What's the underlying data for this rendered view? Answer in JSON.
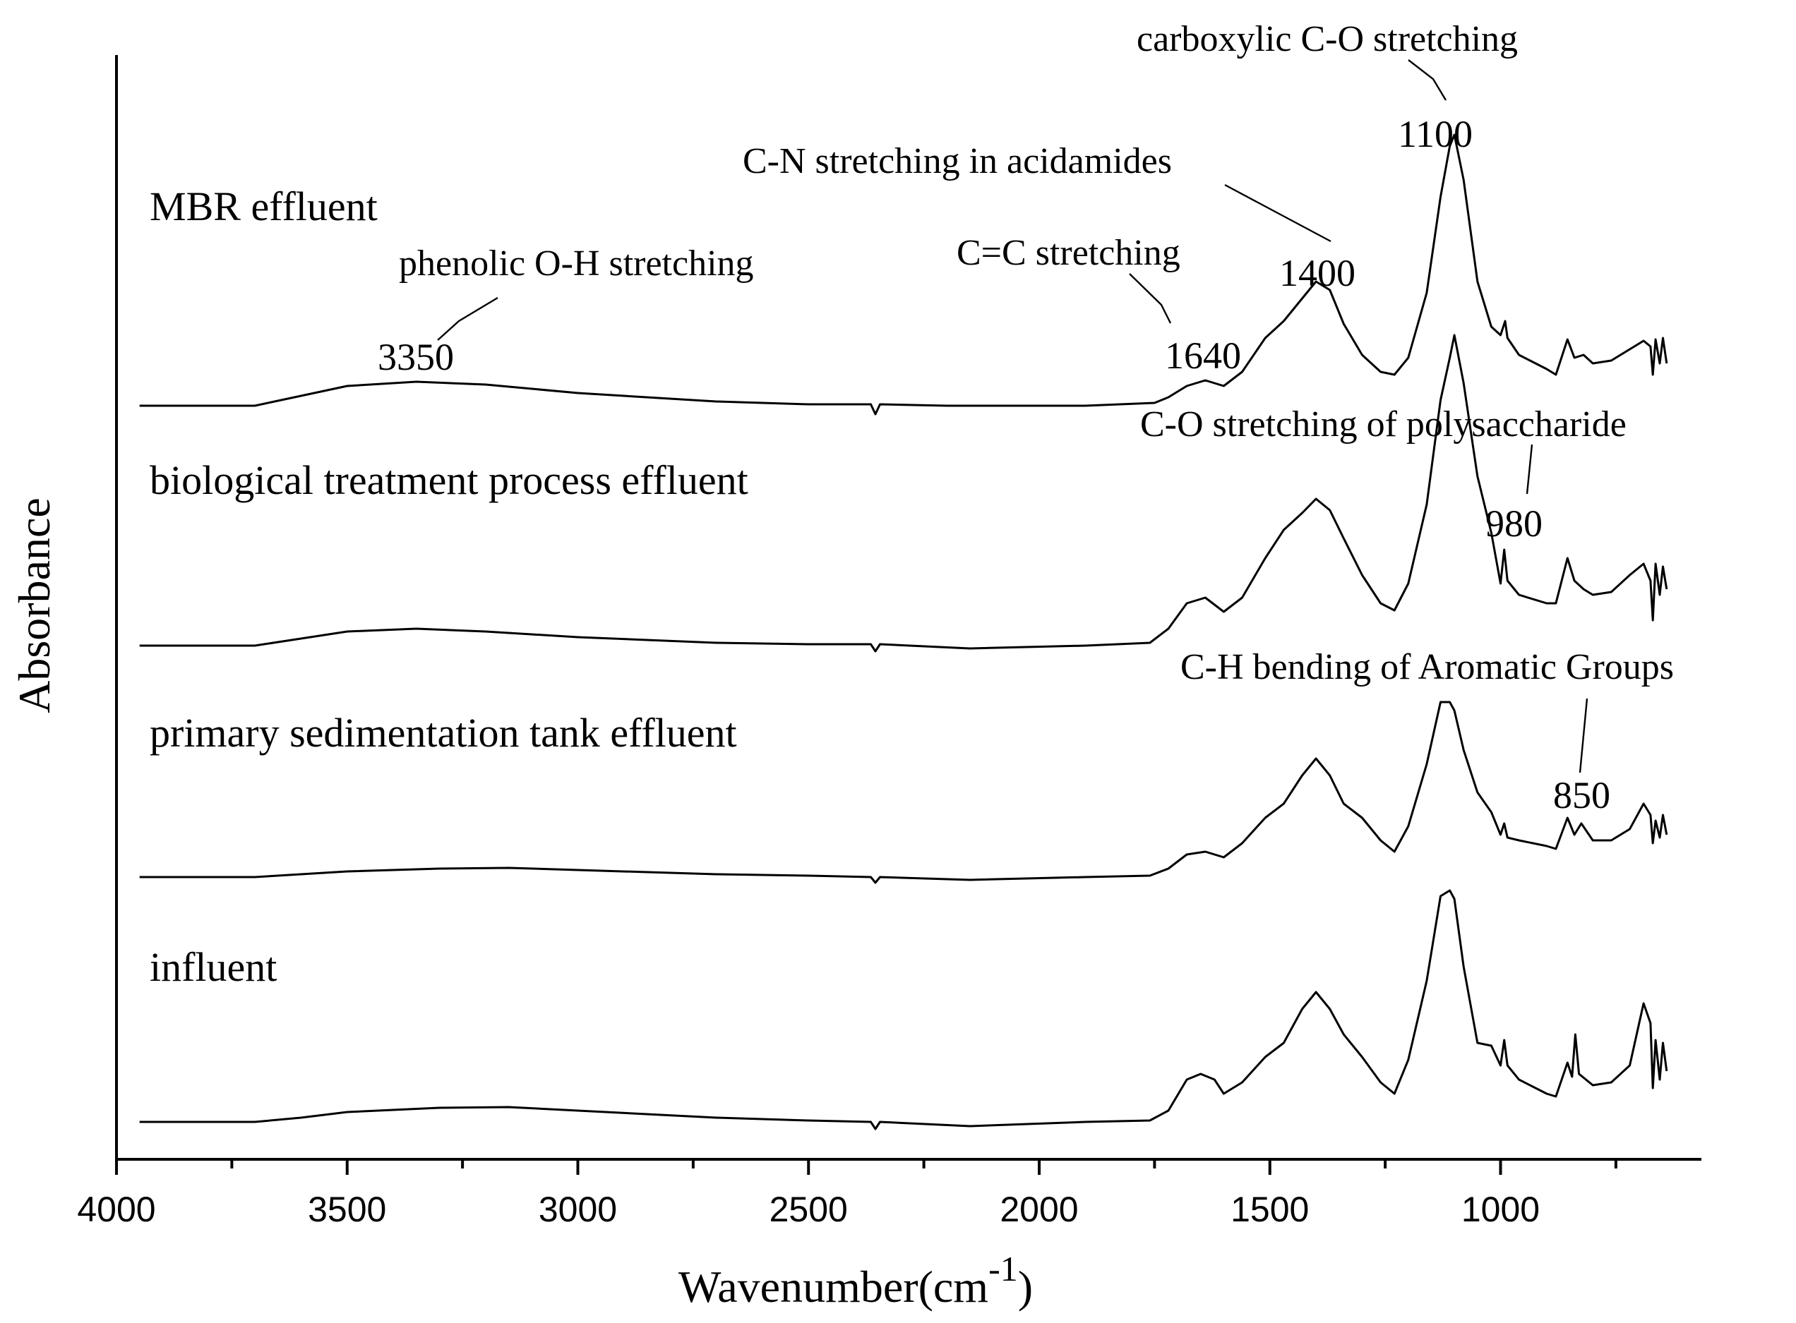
{
  "chart_data": {
    "type": "line",
    "title": "",
    "xlabel": "Wavenumber(cm",
    "xlabel_superscript": "-1",
    "xlabel_suffix": ")",
    "ylabel": "Absorbance",
    "xlim": [
      4000,
      600
    ],
    "x_reversed": true,
    "grid": false,
    "y_ticks_shown": false,
    "ticks": [
      4000,
      3500,
      3000,
      2500,
      2000,
      1500,
      1000
    ],
    "tick_labels": [
      "4000",
      "3500",
      "3000",
      "2500",
      "2000",
      "1500",
      "1000"
    ],
    "series": [
      {
        "name": "MBR effluent",
        "color": "#000000",
        "points": [
          [
            3950,
            0.0
          ],
          [
            3700,
            0.0
          ],
          [
            3600,
            0.07
          ],
          [
            3500,
            0.14
          ],
          [
            3350,
            0.17
          ],
          [
            3200,
            0.15
          ],
          [
            3000,
            0.09
          ],
          [
            2700,
            0.03
          ],
          [
            2500,
            0.01
          ],
          [
            2365,
            0.01
          ],
          [
            2355,
            -0.06
          ],
          [
            2345,
            0.01
          ],
          [
            2200,
            0.0
          ],
          [
            1900,
            0.0
          ],
          [
            1750,
            0.02
          ],
          [
            1720,
            0.06
          ],
          [
            1680,
            0.14
          ],
          [
            1640,
            0.18
          ],
          [
            1600,
            0.14
          ],
          [
            1560,
            0.24
          ],
          [
            1510,
            0.48
          ],
          [
            1470,
            0.6
          ],
          [
            1430,
            0.76
          ],
          [
            1400,
            0.88
          ],
          [
            1370,
            0.82
          ],
          [
            1340,
            0.58
          ],
          [
            1300,
            0.36
          ],
          [
            1260,
            0.24
          ],
          [
            1230,
            0.22
          ],
          [
            1200,
            0.34
          ],
          [
            1160,
            0.8
          ],
          [
            1130,
            1.48
          ],
          [
            1110,
            1.84
          ],
          [
            1100,
            1.92
          ],
          [
            1080,
            1.6
          ],
          [
            1050,
            0.88
          ],
          [
            1020,
            0.56
          ],
          [
            1000,
            0.5
          ],
          [
            990,
            0.6
          ],
          [
            985,
            0.48
          ],
          [
            960,
            0.36
          ],
          [
            900,
            0.26
          ],
          [
            880,
            0.22
          ],
          [
            855,
            0.47
          ],
          [
            840,
            0.34
          ],
          [
            820,
            0.36
          ],
          [
            800,
            0.3
          ],
          [
            760,
            0.32
          ],
          [
            720,
            0.4
          ],
          [
            690,
            0.46
          ],
          [
            675,
            0.42
          ],
          [
            670,
            0.22
          ],
          [
            664,
            0.47
          ],
          [
            655,
            0.3
          ],
          [
            648,
            0.48
          ],
          [
            640,
            0.3
          ]
        ]
      },
      {
        "name": "biological treatment process effluent",
        "color": "#000000",
        "points": [
          [
            3950,
            0.0
          ],
          [
            3700,
            0.0
          ],
          [
            3600,
            0.05
          ],
          [
            3500,
            0.1
          ],
          [
            3350,
            0.12
          ],
          [
            3200,
            0.1
          ],
          [
            3000,
            0.06
          ],
          [
            2700,
            0.02
          ],
          [
            2500,
            0.01
          ],
          [
            2365,
            0.01
          ],
          [
            2355,
            -0.04
          ],
          [
            2345,
            0.01
          ],
          [
            2150,
            -0.02
          ],
          [
            1900,
            0.0
          ],
          [
            1760,
            0.02
          ],
          [
            1720,
            0.12
          ],
          [
            1680,
            0.3
          ],
          [
            1640,
            0.34
          ],
          [
            1600,
            0.24
          ],
          [
            1560,
            0.34
          ],
          [
            1510,
            0.62
          ],
          [
            1470,
            0.82
          ],
          [
            1430,
            0.94
          ],
          [
            1400,
            1.04
          ],
          [
            1370,
            0.96
          ],
          [
            1340,
            0.76
          ],
          [
            1300,
            0.5
          ],
          [
            1260,
            0.3
          ],
          [
            1230,
            0.25
          ],
          [
            1200,
            0.44
          ],
          [
            1160,
            1.0
          ],
          [
            1130,
            1.74
          ],
          [
            1110,
            2.04
          ],
          [
            1100,
            2.2
          ],
          [
            1080,
            1.86
          ],
          [
            1050,
            1.2
          ],
          [
            1020,
            0.8
          ],
          [
            1000,
            0.44
          ],
          [
            992,
            0.68
          ],
          [
            985,
            0.46
          ],
          [
            960,
            0.36
          ],
          [
            900,
            0.3
          ],
          [
            880,
            0.3
          ],
          [
            855,
            0.62
          ],
          [
            840,
            0.46
          ],
          [
            820,
            0.4
          ],
          [
            800,
            0.36
          ],
          [
            760,
            0.38
          ],
          [
            720,
            0.5
          ],
          [
            690,
            0.58
          ],
          [
            675,
            0.46
          ],
          [
            670,
            0.18
          ],
          [
            664,
            0.58
          ],
          [
            655,
            0.36
          ],
          [
            648,
            0.56
          ],
          [
            640,
            0.4
          ]
        ]
      },
      {
        "name": "primary sedimentation tank effluent",
        "color": "#000000",
        "points": [
          [
            3950,
            0.0
          ],
          [
            3700,
            0.0
          ],
          [
            3600,
            0.02
          ],
          [
            3500,
            0.04
          ],
          [
            3300,
            0.06
          ],
          [
            3150,
            0.065
          ],
          [
            3000,
            0.05
          ],
          [
            2700,
            0.02
          ],
          [
            2500,
            0.01
          ],
          [
            2365,
            0.0
          ],
          [
            2355,
            -0.04
          ],
          [
            2345,
            0.0
          ],
          [
            2150,
            -0.02
          ],
          [
            1900,
            0.0
          ],
          [
            1760,
            0.01
          ],
          [
            1720,
            0.06
          ],
          [
            1680,
            0.16
          ],
          [
            1640,
            0.18
          ],
          [
            1600,
            0.14
          ],
          [
            1560,
            0.24
          ],
          [
            1510,
            0.42
          ],
          [
            1470,
            0.52
          ],
          [
            1430,
            0.72
          ],
          [
            1400,
            0.84
          ],
          [
            1370,
            0.72
          ],
          [
            1340,
            0.52
          ],
          [
            1300,
            0.42
          ],
          [
            1260,
            0.26
          ],
          [
            1230,
            0.18
          ],
          [
            1200,
            0.36
          ],
          [
            1160,
            0.8
          ],
          [
            1130,
            1.24
          ],
          [
            1110,
            1.24
          ],
          [
            1100,
            1.18
          ],
          [
            1080,
            0.9
          ],
          [
            1050,
            0.6
          ],
          [
            1020,
            0.46
          ],
          [
            1000,
            0.3
          ],
          [
            992,
            0.38
          ],
          [
            985,
            0.28
          ],
          [
            960,
            0.26
          ],
          [
            900,
            0.22
          ],
          [
            880,
            0.2
          ],
          [
            855,
            0.42
          ],
          [
            840,
            0.3
          ],
          [
            825,
            0.38
          ],
          [
            800,
            0.26
          ],
          [
            760,
            0.26
          ],
          [
            720,
            0.34
          ],
          [
            690,
            0.52
          ],
          [
            675,
            0.44
          ],
          [
            670,
            0.24
          ],
          [
            664,
            0.4
          ],
          [
            655,
            0.28
          ],
          [
            648,
            0.44
          ],
          [
            640,
            0.3
          ]
        ]
      },
      {
        "name": "influent",
        "color": "#000000",
        "points": [
          [
            3950,
            0.0
          ],
          [
            3700,
            0.0
          ],
          [
            3600,
            0.03
          ],
          [
            3500,
            0.07
          ],
          [
            3300,
            0.1
          ],
          [
            3150,
            0.105
          ],
          [
            3000,
            0.08
          ],
          [
            2700,
            0.03
          ],
          [
            2500,
            0.01
          ],
          [
            2365,
            0.0
          ],
          [
            2355,
            -0.05
          ],
          [
            2345,
            0.0
          ],
          [
            2150,
            -0.03
          ],
          [
            1900,
            0.0
          ],
          [
            1760,
            0.01
          ],
          [
            1720,
            0.08
          ],
          [
            1680,
            0.3
          ],
          [
            1650,
            0.34
          ],
          [
            1620,
            0.3
          ],
          [
            1600,
            0.2
          ],
          [
            1560,
            0.28
          ],
          [
            1510,
            0.46
          ],
          [
            1470,
            0.56
          ],
          [
            1430,
            0.8
          ],
          [
            1400,
            0.92
          ],
          [
            1370,
            0.8
          ],
          [
            1340,
            0.62
          ],
          [
            1300,
            0.46
          ],
          [
            1260,
            0.28
          ],
          [
            1230,
            0.2
          ],
          [
            1200,
            0.44
          ],
          [
            1160,
            1.0
          ],
          [
            1130,
            1.6
          ],
          [
            1110,
            1.64
          ],
          [
            1100,
            1.58
          ],
          [
            1080,
            1.1
          ],
          [
            1050,
            0.56
          ],
          [
            1020,
            0.54
          ],
          [
            1000,
            0.4
          ],
          [
            992,
            0.58
          ],
          [
            985,
            0.4
          ],
          [
            960,
            0.3
          ],
          [
            900,
            0.2
          ],
          [
            880,
            0.18
          ],
          [
            855,
            0.42
          ],
          [
            845,
            0.32
          ],
          [
            838,
            0.62
          ],
          [
            830,
            0.34
          ],
          [
            800,
            0.26
          ],
          [
            760,
            0.28
          ],
          [
            720,
            0.4
          ],
          [
            690,
            0.84
          ],
          [
            675,
            0.7
          ],
          [
            670,
            0.24
          ],
          [
            664,
            0.58
          ],
          [
            655,
            0.3
          ],
          [
            648,
            0.56
          ],
          [
            640,
            0.36
          ]
        ]
      }
    ],
    "series_labels": [
      {
        "text": "MBR effluent",
        "series": 0
      },
      {
        "text": "biological treatment process effluent",
        "series": 1
      },
      {
        "text": "primary sedimentation tank effluent",
        "series": 2
      },
      {
        "text": "influent",
        "series": 3
      }
    ],
    "annotations": [
      {
        "title": "carboxylic C-O stretching",
        "value": "1100",
        "x": 1100
      },
      {
        "title": "C-N stretching in acidamides",
        "value": "1400",
        "x": 1400
      },
      {
        "title": "C=C stretching",
        "value": "1640",
        "x": 1640
      },
      {
        "title": "phenolic O-H stretching",
        "value": "3350",
        "x": 3350
      },
      {
        "title": "C-O stretching of polysaccharide",
        "value": "980",
        "x": 980
      },
      {
        "title": "C-H bending of Aromatic Groups",
        "value": "850",
        "x": 850
      }
    ]
  }
}
